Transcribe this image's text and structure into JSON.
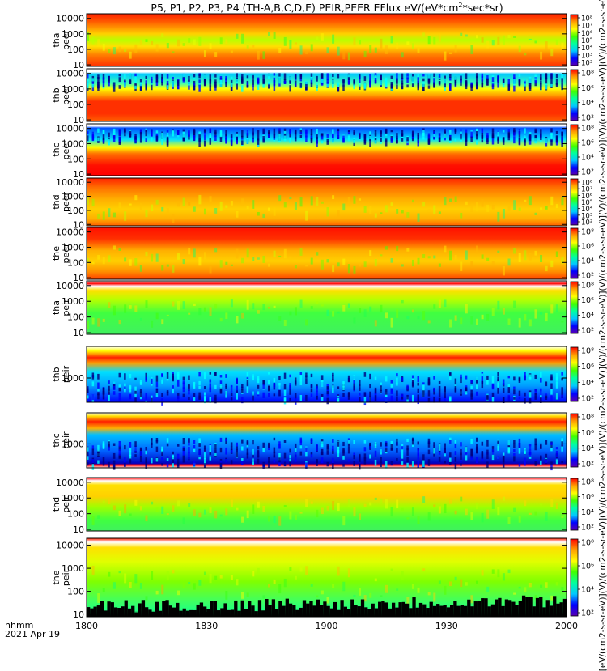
{
  "title_prefix": "P5, P1, P2, P3, P4 (TH-A,B,C,D,E) PEIR,PEER EFlux eV/(eV*cm",
  "title_sup": "2",
  "title_suffix": "*sec*sr)",
  "right_axis_label": "[eV/(cm2-s-sr-eV)](V)/(cm2-s-sr-eV)](V)/(cm2-s-sr-eV)](V)/(cm2-s-sr-eV)](V)/(cm2-s-sr-eV)](V)/(cm2-s-sr-eV)](V)/(cm2-s-sr-eV)](V)/(cm2-s-sr-eV)](V)/(cm2-s-sr-eV)](4)",
  "footer": {
    "time_unit": "hhmm",
    "date": "2021 Apr 19"
  },
  "colors": {
    "ramp": [
      "#5a00b0",
      "#0000ff",
      "#00c8ff",
      "#00ffa0",
      "#40ff00",
      "#ffff00",
      "#ffa000",
      "#ff0000"
    ]
  },
  "chart_data": {
    "type": "heatmap",
    "x_axis": {
      "ticks": [
        "1800",
        "1830",
        "1900",
        "1930",
        "2000"
      ],
      "range": [
        "1800",
        "2000"
      ]
    },
    "panels": [
      {
        "label_top": "tha",
        "label_bottom": "peer",
        "y_ticks": [
          "10000",
          "1000",
          "100",
          "10"
        ],
        "cbar_ticks": [
          "10⁸",
          "10⁷",
          "10⁶",
          "10⁵",
          "10⁴",
          "10³",
          "10²"
        ],
        "log_range": [
          0.9,
          4.3
        ]
      },
      {
        "label_top": "thb",
        "label_bottom": "peer",
        "y_ticks": [
          "10000",
          "1000",
          "100",
          "10"
        ],
        "cbar_ticks": [
          "10⁸",
          "10⁶",
          "10⁴",
          "10²"
        ],
        "log_range": [
          0.9,
          4.3
        ]
      },
      {
        "label_top": "thc",
        "label_bottom": "peer",
        "y_ticks": [
          "10000",
          "1000",
          "100",
          "10"
        ],
        "cbar_ticks": [
          "10⁸",
          "10⁶",
          "10⁴",
          "10²"
        ],
        "log_range": [
          0.9,
          4.3
        ]
      },
      {
        "label_top": "thd",
        "label_bottom": "peer",
        "y_ticks": [
          "10000",
          "1000",
          "100",
          "10"
        ],
        "cbar_ticks": [
          "10⁸",
          "10⁷",
          "10⁶",
          "10⁵",
          "10⁴",
          "10³",
          "10²"
        ],
        "log_range": [
          0.9,
          4.3
        ]
      },
      {
        "label_top": "the",
        "label_bottom": "peer",
        "y_ticks": [
          "10000",
          "1000",
          "100",
          "10"
        ],
        "cbar_ticks": [
          "10⁸",
          "10⁶",
          "10⁴",
          "10²"
        ],
        "log_range": [
          0.9,
          4.3
        ]
      },
      {
        "label_top": "tha",
        "label_bottom": "peir",
        "y_ticks": [
          "10000",
          "1000",
          "100",
          "10"
        ],
        "cbar_ticks": [
          "10⁸",
          "10⁶",
          "10⁴",
          "10²"
        ],
        "log_range": [
          0.9,
          4.3
        ]
      },
      {
        "label_top": "thb",
        "label_bottom": "peir",
        "y_ticks": [
          "1000"
        ],
        "cbar_ticks": [
          "10⁸",
          "10⁶",
          "10⁴",
          "10²"
        ],
        "log_range": [
          2.0,
          4.3
        ]
      },
      {
        "label_top": "thc",
        "label_bottom": "peir",
        "y_ticks": [
          "1000"
        ],
        "cbar_ticks": [
          "10⁸",
          "10⁶",
          "10⁴",
          "10²"
        ],
        "log_range": [
          2.0,
          4.3
        ]
      },
      {
        "label_top": "thd",
        "label_bottom": "peir",
        "y_ticks": [
          "10000",
          "1000",
          "100",
          "10"
        ],
        "cbar_ticks": [
          "10⁸",
          "10⁶",
          "10⁴",
          "10²"
        ],
        "log_range": [
          0.9,
          4.3
        ]
      },
      {
        "label_top": "the",
        "label_bottom": "peir",
        "y_ticks": [
          "10000",
          "1000",
          "100",
          "10"
        ],
        "cbar_ticks": [
          "10⁸",
          "10⁶",
          "10⁴",
          "10²"
        ],
        "log_range": [
          0.9,
          4.3
        ]
      }
    ]
  }
}
